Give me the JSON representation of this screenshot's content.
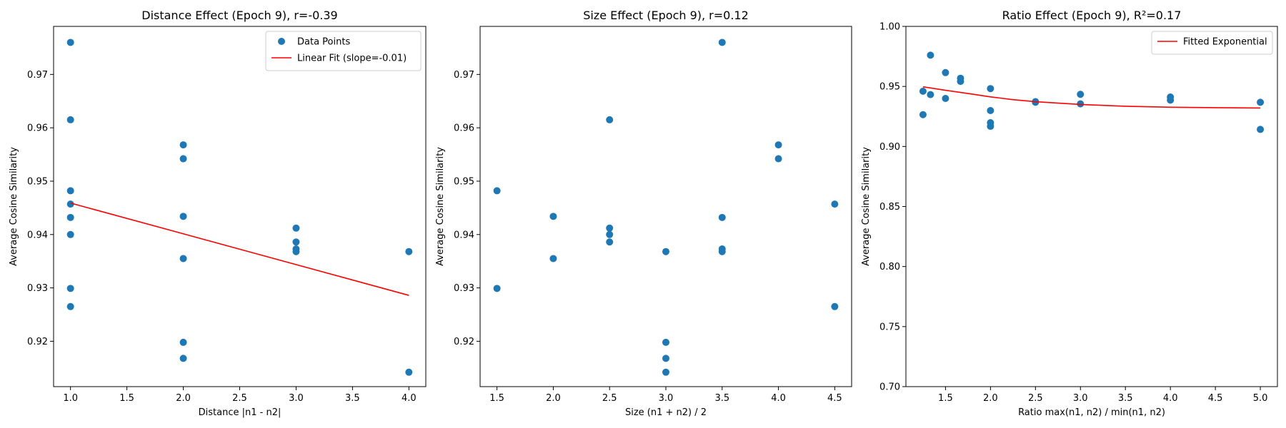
{
  "chart_data": [
    {
      "type": "scatter",
      "title": "Distance Effect (Epoch 9), r=-0.39",
      "xlabel": "Distance |n1 - n2|",
      "ylabel": "Average Cosine Similarity",
      "xlim": [
        0.85,
        4.15
      ],
      "ylim": [
        0.9115,
        0.979
      ],
      "xticks": [
        1.0,
        1.5,
        2.0,
        2.5,
        3.0,
        3.5,
        4.0
      ],
      "xtick_labels": [
        "1.0",
        "1.5",
        "2.0",
        "2.5",
        "3.0",
        "3.5",
        "4.0"
      ],
      "yticks": [
        0.92,
        0.93,
        0.94,
        0.95,
        0.96,
        0.97
      ],
      "ytick_labels": [
        "0.92",
        "0.93",
        "0.94",
        "0.95",
        "0.96",
        "0.97"
      ],
      "legend": {
        "position": "top-right",
        "entries": [
          "Data Points",
          "Linear Fit (slope=-0.01)"
        ]
      },
      "series": [
        {
          "name": "Data Points",
          "kind": "scatter",
          "color": "#1f77b4",
          "points": [
            [
              1.0,
              0.976
            ],
            [
              1.0,
              0.9615
            ],
            [
              1.0,
              0.9482
            ],
            [
              1.0,
              0.9457
            ],
            [
              1.0,
              0.9432
            ],
            [
              1.0,
              0.94
            ],
            [
              1.0,
              0.9299
            ],
            [
              1.0,
              0.9265
            ],
            [
              2.0,
              0.9568
            ],
            [
              2.0,
              0.9542
            ],
            [
              2.0,
              0.9434
            ],
            [
              2.0,
              0.9355
            ],
            [
              2.0,
              0.9198
            ],
            [
              2.0,
              0.9168
            ],
            [
              3.0,
              0.9412
            ],
            [
              3.0,
              0.9386
            ],
            [
              3.0,
              0.9373
            ],
            [
              3.0,
              0.9368
            ],
            [
              4.0,
              0.9368
            ],
            [
              4.0,
              0.9142
            ]
          ]
        },
        {
          "name": "Linear Fit (slope=-0.01)",
          "kind": "line",
          "color": "#ff0000",
          "points": [
            [
              1.0,
              0.9459
            ],
            [
              4.0,
              0.9286
            ]
          ]
        }
      ]
    },
    {
      "type": "scatter",
      "title": "Size Effect (Epoch 9), r=0.12",
      "xlabel": "Size (n1 + n2) / 2",
      "ylabel": "Average Cosine Similarity",
      "xlim": [
        1.35,
        4.65
      ],
      "ylim": [
        0.9115,
        0.979
      ],
      "xticks": [
        1.5,
        2.0,
        2.5,
        3.0,
        3.5,
        4.0,
        4.5
      ],
      "xtick_labels": [
        "1.5",
        "2.0",
        "2.5",
        "3.0",
        "3.5",
        "4.0",
        "4.5"
      ],
      "yticks": [
        0.92,
        0.93,
        0.94,
        0.95,
        0.96,
        0.97
      ],
      "ytick_labels": [
        "0.92",
        "0.93",
        "0.94",
        "0.95",
        "0.96",
        "0.97"
      ],
      "series": [
        {
          "kind": "scatter",
          "color": "#1f77b4",
          "points": [
            [
              1.5,
              0.9482
            ],
            [
              1.5,
              0.9299
            ],
            [
              2.0,
              0.9434
            ],
            [
              2.0,
              0.9355
            ],
            [
              2.5,
              0.9615
            ],
            [
              2.5,
              0.9412
            ],
            [
              2.5,
              0.94
            ],
            [
              2.5,
              0.9386
            ],
            [
              3.0,
              0.9368
            ],
            [
              3.0,
              0.9198
            ],
            [
              3.0,
              0.9168
            ],
            [
              3.0,
              0.9142
            ],
            [
              3.5,
              0.976
            ],
            [
              3.5,
              0.9432
            ],
            [
              3.5,
              0.9373
            ],
            [
              3.5,
              0.9368
            ],
            [
              4.0,
              0.9568
            ],
            [
              4.0,
              0.9542
            ],
            [
              4.5,
              0.9457
            ],
            [
              4.5,
              0.9265
            ]
          ]
        }
      ]
    },
    {
      "type": "scatter",
      "title": "Ratio Effect (Epoch 9), R²=0.17",
      "xlabel": "Ratio max(n1, n2) / min(n1, n2)",
      "ylabel": "Average Cosine Similarity",
      "xlim": [
        1.06,
        5.19
      ],
      "ylim": [
        0.7,
        1.0
      ],
      "xticks": [
        1.5,
        2.0,
        2.5,
        3.0,
        3.5,
        4.0,
        4.5,
        5.0
      ],
      "xtick_labels": [
        "1.5",
        "2.0",
        "2.5",
        "3.0",
        "3.5",
        "4.0",
        "4.5",
        "5.0"
      ],
      "yticks": [
        0.7,
        0.75,
        0.8,
        0.85,
        0.9,
        0.95,
        1.0
      ],
      "ytick_labels": [
        "0.70",
        "0.75",
        "0.80",
        "0.85",
        "0.90",
        "0.95",
        "1.00"
      ],
      "legend": {
        "position": "top-right",
        "entries": [
          "Fitted Exponential"
        ]
      },
      "series": [
        {
          "kind": "scatter",
          "color": "#1f77b4",
          "points": [
            [
              1.25,
              0.9265
            ],
            [
              1.25,
              0.946
            ],
            [
              1.333,
              0.976
            ],
            [
              1.333,
              0.9432
            ],
            [
              1.5,
              0.9615
            ],
            [
              1.5,
              0.94
            ],
            [
              1.667,
              0.9568
            ],
            [
              1.667,
              0.9542
            ],
            [
              2.0,
              0.9482
            ],
            [
              2.0,
              0.9299
            ],
            [
              2.0,
              0.9198
            ],
            [
              2.0,
              0.9168
            ],
            [
              2.5,
              0.9373
            ],
            [
              2.5,
              0.9368
            ],
            [
              3.0,
              0.9434
            ],
            [
              3.0,
              0.9355
            ],
            [
              4.0,
              0.9412
            ],
            [
              4.0,
              0.9386
            ],
            [
              5.0,
              0.9368
            ],
            [
              5.0,
              0.9142
            ]
          ]
        },
        {
          "name": "Fitted Exponential",
          "kind": "line",
          "color": "#ff0000",
          "points": [
            [
              1.25,
              0.9497
            ],
            [
              1.5,
              0.9468
            ],
            [
              1.75,
              0.9441
            ],
            [
              2.0,
              0.9413
            ],
            [
              2.25,
              0.939
            ],
            [
              2.5,
              0.9373
            ],
            [
              3.0,
              0.935
            ],
            [
              3.5,
              0.9335
            ],
            [
              4.0,
              0.9327
            ],
            [
              4.5,
              0.9323
            ],
            [
              5.0,
              0.932
            ]
          ]
        }
      ]
    }
  ]
}
